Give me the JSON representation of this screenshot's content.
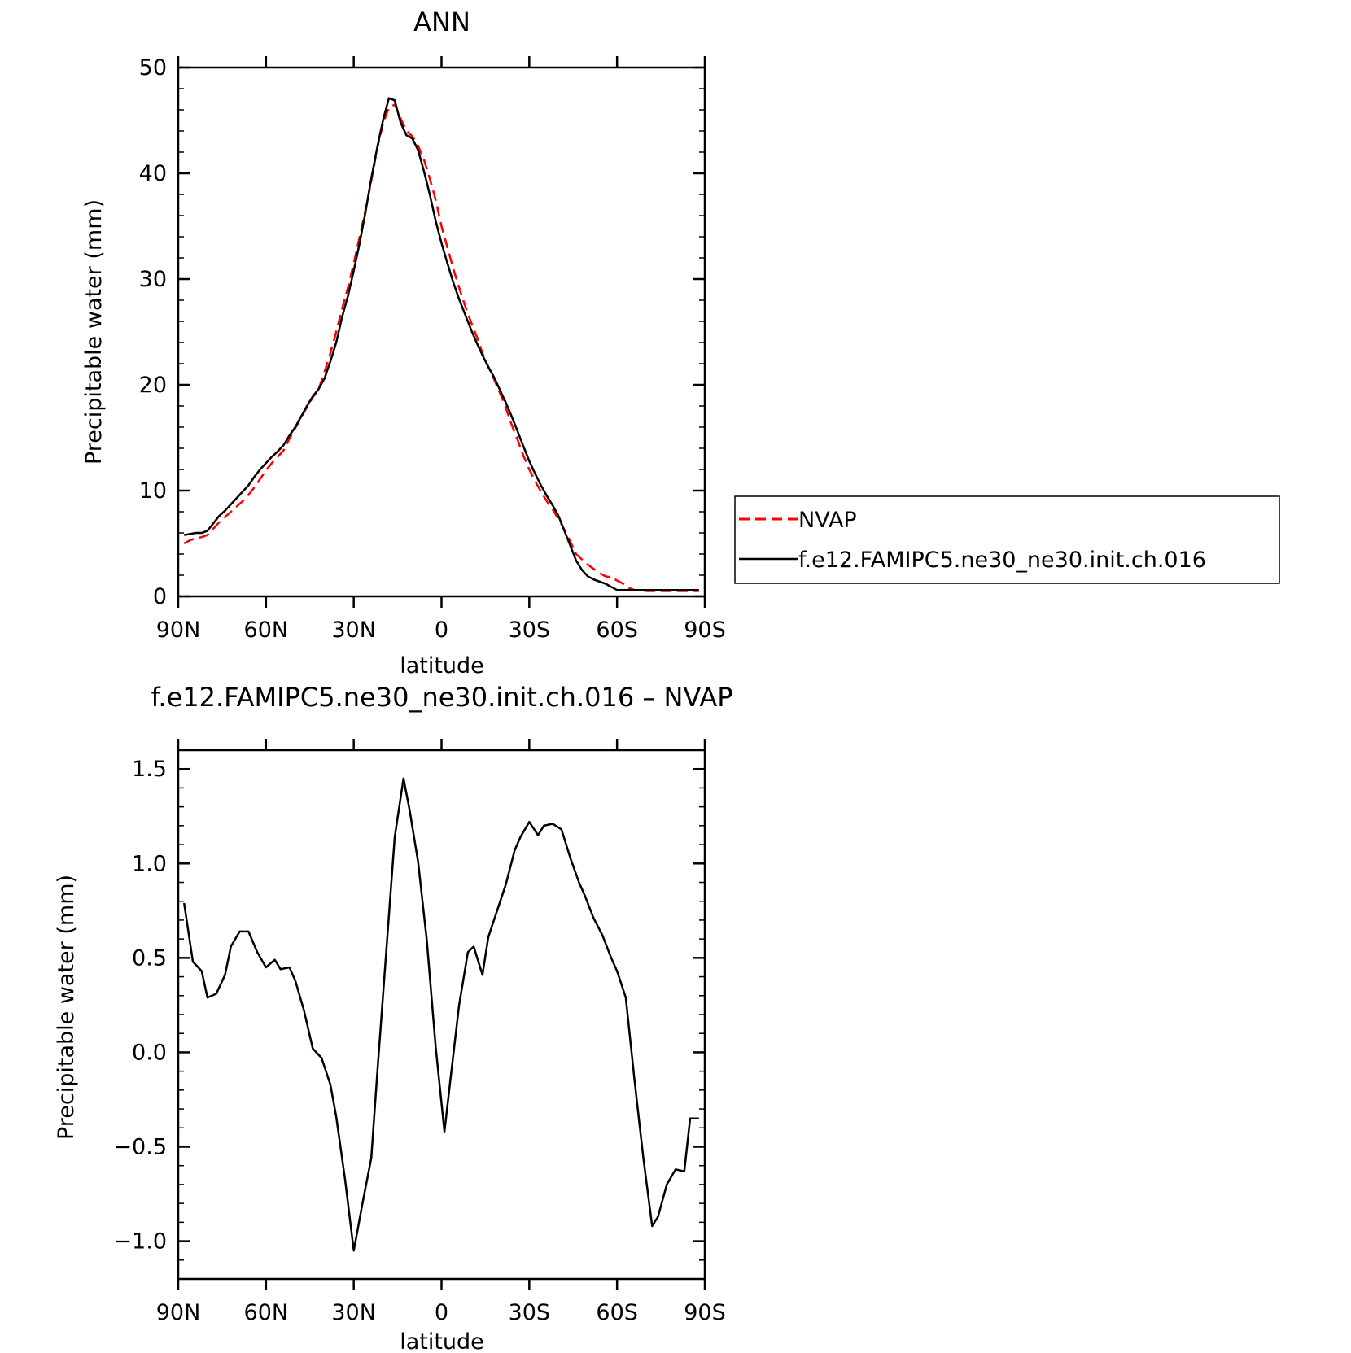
{
  "chart_data": [
    {
      "type": "line",
      "title": "ANN",
      "xlabel": "latitude",
      "ylabel": "Precipitable water (mm)",
      "xlim": [
        90,
        -90
      ],
      "ylim": [
        0,
        50
      ],
      "xticks": [
        90,
        60,
        30,
        0,
        -30,
        -60,
        -90
      ],
      "xtick_labels": [
        "90N",
        "60N",
        "30N",
        "0",
        "30S",
        "60S",
        "90S"
      ],
      "yticks": [
        0,
        10,
        20,
        30,
        40,
        50
      ],
      "ytick_labels": [
        "0",
        "10",
        "20",
        "30",
        "40",
        "50"
      ],
      "legend_position": "right",
      "x": [
        88,
        86,
        84,
        82,
        80,
        78,
        76,
        74,
        72,
        70,
        68,
        66,
        64,
        62,
        60,
        58,
        56,
        54,
        52,
        50,
        48,
        46,
        44,
        42,
        40,
        38,
        36,
        34,
        32,
        30,
        28,
        26,
        24,
        22,
        20,
        18,
        16,
        14,
        12,
        10,
        8,
        6,
        4,
        2,
        0,
        -2,
        -4,
        -6,
        -8,
        -10,
        -12,
        -14,
        -16,
        -18,
        -20,
        -22,
        -24,
        -26,
        -28,
        -30,
        -32,
        -34,
        -36,
        -38,
        -40,
        -42,
        -44,
        -46,
        -48,
        -50,
        -52,
        -54,
        -56,
        -58,
        -60,
        -62,
        -64,
        -66,
        -68,
        -70,
        -72,
        -74,
        -76,
        -78,
        -80,
        -82,
        -84,
        -86,
        -88
      ],
      "series": [
        {
          "name": "NVAP",
          "color": "#ff0000",
          "dash": "dashed",
          "values": [
            5.0,
            5.3,
            5.5,
            5.6,
            5.8,
            6.4,
            7.0,
            7.5,
            8.0,
            8.5,
            9.0,
            9.6,
            10.3,
            11.1,
            11.9,
            12.6,
            13.2,
            13.8,
            14.9,
            15.9,
            16.9,
            17.9,
            18.8,
            19.6,
            21.2,
            23.0,
            25.0,
            27.2,
            29.2,
            31.5,
            34.0,
            36.5,
            39.3,
            42.3,
            44.7,
            46.2,
            46.5,
            45.2,
            44.0,
            43.5,
            42.6,
            41.3,
            39.5,
            37.5,
            35.0,
            33.0,
            31.0,
            29.2,
            27.5,
            26.0,
            24.6,
            23.0,
            21.7,
            20.5,
            19.2,
            17.8,
            16.2,
            14.8,
            13.3,
            12.0,
            10.9,
            9.9,
            9.0,
            8.2,
            7.3,
            6.3,
            5.2,
            4.0,
            3.5,
            3.0,
            2.6,
            2.2,
            1.9,
            1.8,
            1.5,
            1.2,
            0.8,
            0.6,
            0.6,
            0.5,
            0.5,
            0.5,
            0.5,
            0.5,
            0.5,
            0.5,
            0.5,
            0.5,
            0.5
          ]
        },
        {
          "name": "f.e12.FAMIPC5.ne30_ne30.init.ch.016",
          "color": "#000000",
          "dash": "solid",
          "values": [
            5.8,
            5.9,
            6.0,
            6.0,
            6.2,
            6.9,
            7.6,
            8.1,
            8.7,
            9.3,
            9.9,
            10.5,
            11.3,
            12.0,
            12.6,
            13.2,
            13.7,
            14.3,
            15.2,
            16.0,
            17.0,
            18.0,
            18.9,
            19.6,
            20.6,
            22.2,
            24.0,
            26.4,
            28.4,
            30.8,
            33.4,
            36.3,
            39.5,
            42.4,
            45.0,
            47.1,
            46.9,
            44.8,
            43.6,
            43.3,
            42.2,
            40.2,
            38.0,
            35.5,
            33.4,
            31.5,
            29.7,
            28.1,
            26.7,
            25.3,
            24.0,
            22.8,
            21.7,
            20.7,
            19.5,
            18.3,
            17.0,
            15.6,
            14.2,
            12.8,
            11.6,
            10.5,
            9.5,
            8.6,
            7.6,
            6.2,
            4.8,
            3.4,
            2.5,
            1.9,
            1.6,
            1.4,
            1.2,
            0.9,
            0.6,
            0.6,
            0.6,
            0.6,
            0.6,
            0.6,
            0.6,
            0.6,
            0.6,
            0.6,
            0.6,
            0.6,
            0.6,
            0.6,
            0.6
          ]
        }
      ]
    },
    {
      "type": "line",
      "title": "f.e12.FAMIPC5.ne30_ne30.init.ch.016 – NVAP",
      "xlabel": "latitude",
      "ylabel": "Precipitable water (mm)",
      "xlim": [
        90,
        -90
      ],
      "ylim": [
        -1.2,
        1.6
      ],
      "xticks": [
        90,
        60,
        30,
        0,
        -30,
        -60,
        -90
      ],
      "xtick_labels": [
        "90N",
        "60N",
        "30N",
        "0",
        "30S",
        "60S",
        "90S"
      ],
      "yticks": [
        -1.0,
        -0.5,
        0.0,
        0.5,
        1.0,
        1.5
      ],
      "ytick_labels": [
        "−1.0",
        "−0.5",
        "0.0",
        "0.5",
        "1.0",
        "1.5"
      ],
      "x": [
        88,
        85,
        82,
        80,
        77,
        74,
        72,
        69,
        66,
        63,
        60,
        57,
        55,
        52,
        50,
        47,
        44,
        41,
        38,
        36,
        33,
        30,
        27,
        24,
        22,
        19,
        16,
        13,
        11,
        8,
        5,
        2,
        -1,
        -3,
        -6,
        -9,
        -11,
        -14,
        -16,
        -19,
        -22,
        -25,
        -27,
        -30,
        -33,
        -35,
        -38,
        -41,
        -44,
        -47,
        -49,
        -52,
        -55,
        -58,
        -60,
        -63,
        -66,
        -69,
        -72,
        -74,
        -77,
        -80,
        -83,
        -85,
        -88
      ],
      "series": [
        {
          "name": "",
          "color": "#000000",
          "dash": "solid",
          "values": [
            0.79,
            0.48,
            0.43,
            0.29,
            0.31,
            0.41,
            0.56,
            0.64,
            0.64,
            0.53,
            0.45,
            0.49,
            0.44,
            0.45,
            0.38,
            0.22,
            0.02,
            -0.03,
            -0.17,
            -0.34,
            -0.67,
            -1.05,
            -0.8,
            -0.56,
            -0.12,
            0.51,
            1.14,
            1.45,
            1.29,
            1.01,
            0.59,
            0.03,
            -0.42,
            -0.15,
            0.25,
            0.53,
            0.56,
            0.41,
            0.61,
            0.75,
            0.89,
            1.07,
            1.14,
            1.22,
            1.15,
            1.2,
            1.21,
            1.18,
            1.03,
            0.9,
            0.83,
            0.71,
            0.62,
            0.5,
            0.43,
            0.29,
            -0.15,
            -0.56,
            -0.92,
            -0.87,
            -0.7,
            -0.62,
            -0.63,
            -0.35,
            -0.35
          ]
        }
      ]
    }
  ]
}
